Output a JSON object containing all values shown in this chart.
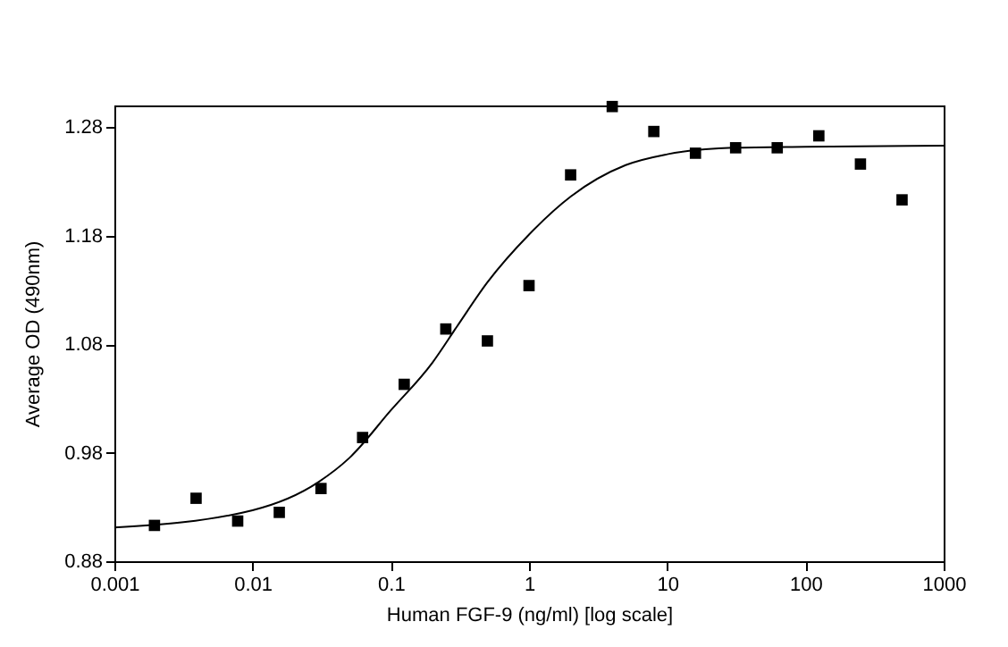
{
  "chart_data": {
    "type": "scatter",
    "xlabel": "Human FGF-9 (ng/ml) [log scale]",
    "ylabel": "Average OD (490nm)",
    "log": "x",
    "grid": false,
    "xlim": [
      0.001,
      1000
    ],
    "xticks": [
      0.001,
      0.01,
      0.1,
      1,
      10,
      100,
      1000
    ],
    "ylim": [
      0.88,
      1.3
    ],
    "yticks": [
      0.88,
      0.98,
      1.08,
      1.18,
      1.28
    ],
    "series": [
      {
        "marker": "square",
        "color": "#000000",
        "x": [
          0.00195,
          0.0039,
          0.0078,
          0.0156,
          0.03125,
          0.0625,
          0.125,
          0.25,
          0.5,
          1,
          2,
          4,
          8,
          16,
          31.25,
          62.5,
          125,
          250,
          500
        ],
        "values": [
          0.913,
          0.938,
          0.917,
          0.925,
          0.947,
          0.994,
          1.043,
          1.094,
          1.083,
          1.134,
          1.236,
          1.299,
          1.276,
          1.256,
          1.261,
          1.261,
          1.272,
          1.246,
          1.213
        ]
      },
      {
        "type": "line",
        "marker": "none",
        "color": "#000000",
        "x": [
          0.001,
          0.01,
          0.03,
          0.05,
          0.1,
          0.2,
          0.3,
          0.5,
          1,
          2,
          5,
          10,
          30,
          100,
          1000
        ],
        "values": [
          0.911,
          0.927,
          0.953,
          0.975,
          1.019,
          1.063,
          1.096,
          1.137,
          1.181,
          1.216,
          1.245,
          1.255,
          1.261,
          1.262,
          1.263
        ]
      }
    ]
  }
}
